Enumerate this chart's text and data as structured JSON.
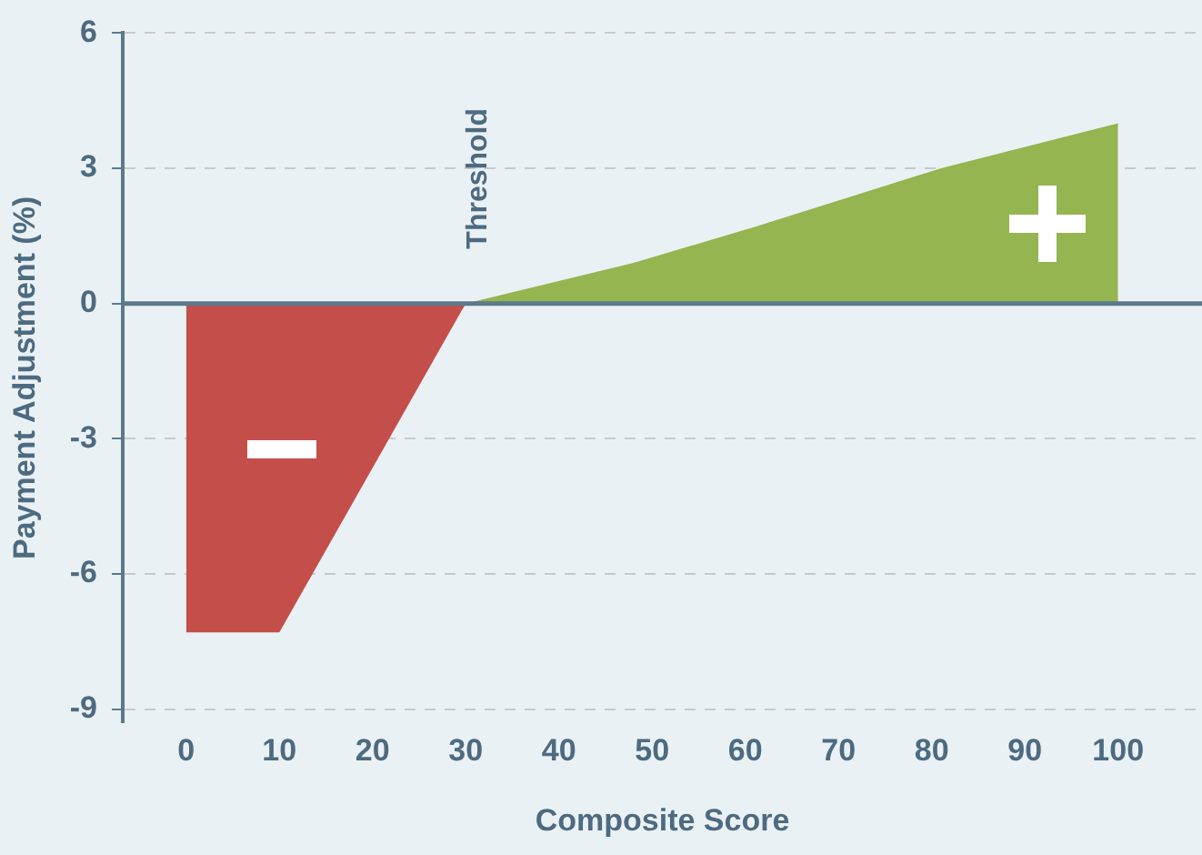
{
  "chart_data": {
    "type": "area",
    "xlabel": "Composite Score",
    "ylabel": "Payment Adjustment (%)",
    "series": [
      {
        "color": "#c44f4a",
        "x": [
          0,
          0,
          10,
          30
        ],
        "values": [
          0,
          -7.3,
          -7.3,
          0
        ]
      },
      {
        "color": "#94b550",
        "x": [
          30,
          48,
          61,
          81,
          100,
          100
        ],
        "values": [
          0,
          0.9,
          1.7,
          3.0,
          4.0,
          0
        ]
      }
    ],
    "xlim": [
      -6.8,
      109
    ],
    "xticks": [
      0,
      10,
      20,
      30,
      40,
      50,
      60,
      70,
      80,
      90,
      100
    ],
    "ylim": [
      -9.3,
      6
    ],
    "yticks": [
      -9,
      -6,
      -3,
      0,
      3,
      6
    ],
    "grid": "y",
    "ref_lines": [
      {
        "axis": "y",
        "value": 0,
        "color": "#5b7a8c"
      }
    ],
    "annotations": [
      {
        "text": "Threshold",
        "x": 30,
        "y": 0
      }
    ]
  }
}
